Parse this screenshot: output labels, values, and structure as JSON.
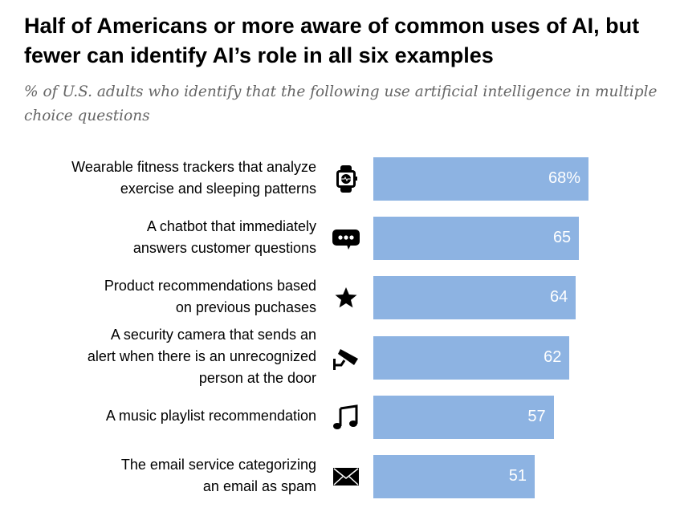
{
  "chart_data": {
    "type": "bar",
    "orientation": "horizontal",
    "title": "Half of Americans or more aware of common uses of AI, but fewer can identify AI’s role in all six examples",
    "subtitle": "% of U.S. adults who identify that the following use artificial intelligence in multiple choice questions",
    "categories": [
      "Wearable fitness trackers that analyze exercise and sleeping patterns",
      "A chatbot that immediately answers customer questions",
      "Product recommendations based on previous puchases",
      "A security camera that sends an alert when there is an unrecognized person at the door",
      "A music playlist recommendation",
      "The email service categorizing an email as spam"
    ],
    "label_lines": [
      [
        "Wearable fitness trackers that analyze",
        "exercise and sleeping patterns"
      ],
      [
        "A chatbot that immediately",
        "answers customer questions"
      ],
      [
        "Product recommendations based",
        "on previous puchases"
      ],
      [
        "A security camera that sends an",
        "alert when there is an unrecognized",
        "person at the door"
      ],
      [
        "A music playlist recommendation"
      ],
      [
        "The email service categorizing",
        "an email as spam"
      ]
    ],
    "icons": [
      "smartwatch-icon",
      "chat-bubble-icon",
      "star-icon",
      "security-camera-icon",
      "music-note-icon",
      "envelope-icon"
    ],
    "values": [
      68,
      65,
      64,
      62,
      57,
      51
    ],
    "data_labels": [
      "68%",
      "65",
      "64",
      "62",
      "57",
      "51"
    ],
    "xlim": [
      0,
      100
    ],
    "color": "#8db3e2"
  }
}
